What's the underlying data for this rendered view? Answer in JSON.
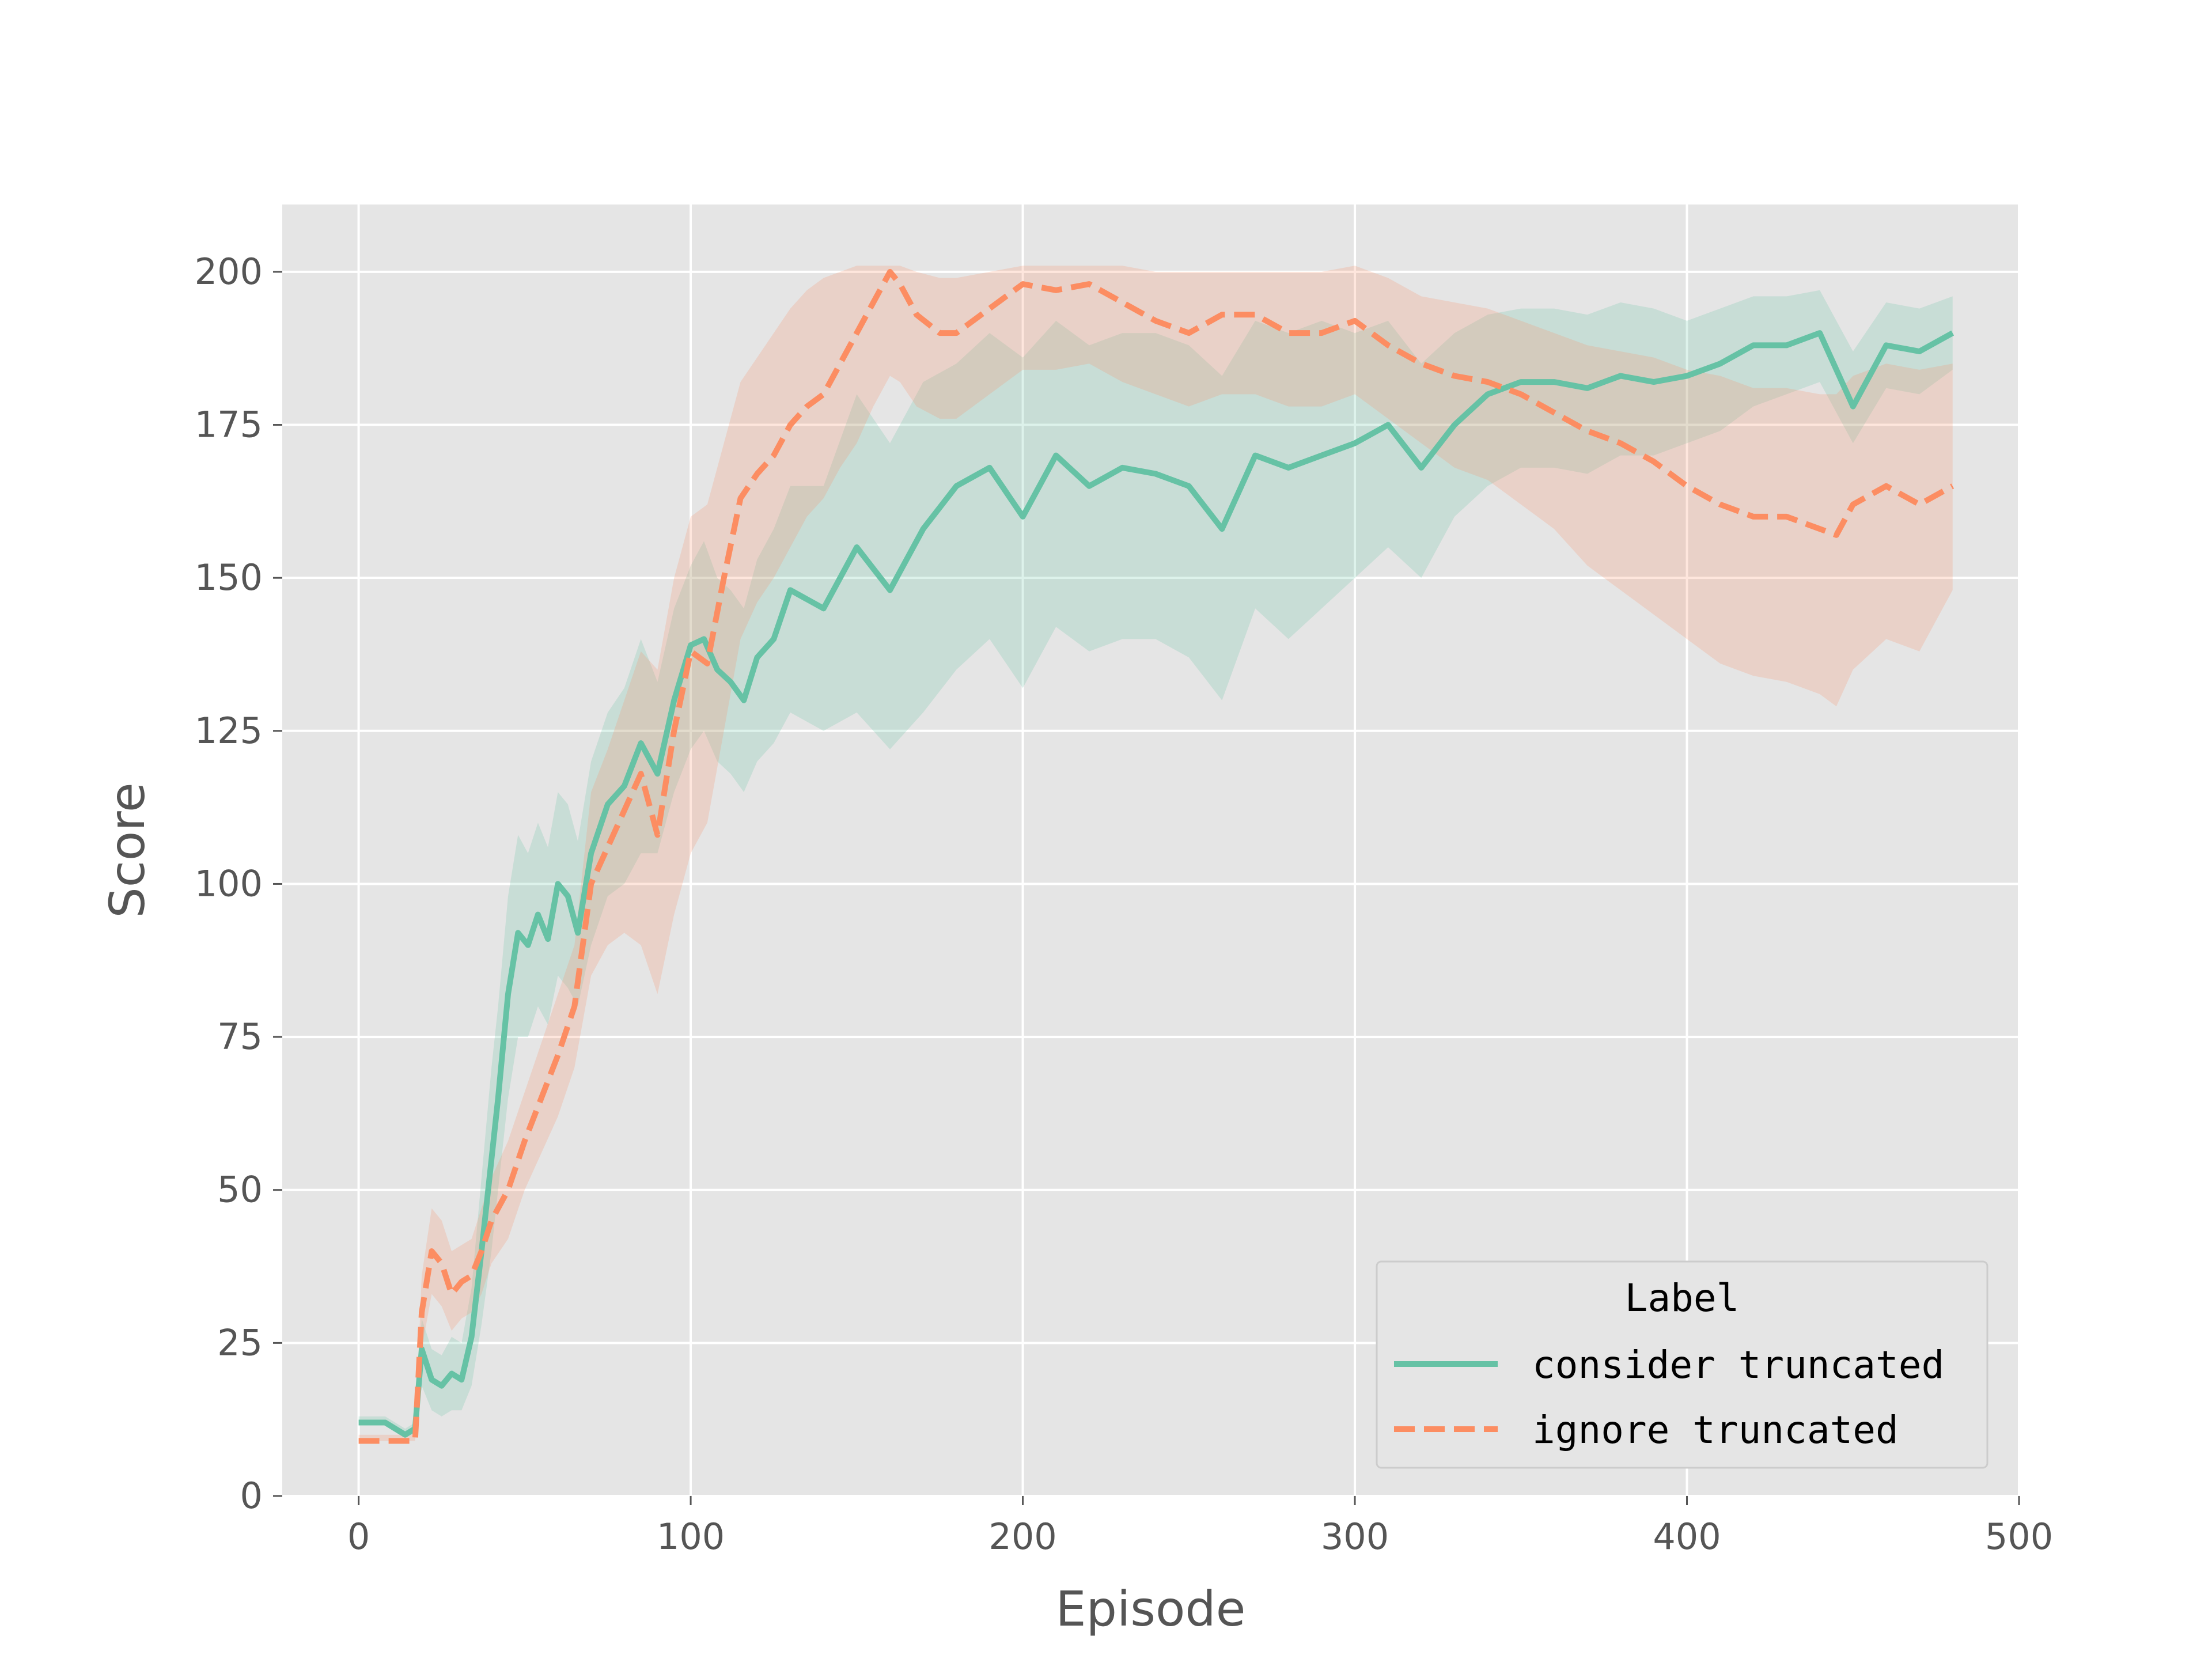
{
  "chart_data": {
    "type": "line",
    "title": "",
    "xlabel": "Episode",
    "ylabel": "Score",
    "xlim": [
      -23,
      500
    ],
    "ylim": [
      0,
      211
    ],
    "xticks": [
      0,
      100,
      200,
      300,
      400,
      500
    ],
    "yticks": [
      0,
      25,
      50,
      75,
      100,
      125,
      150,
      175,
      200
    ],
    "grid": true,
    "background": "#e5e5e5",
    "gridColor": "#ffffff",
    "legend": {
      "title": "Label",
      "placement": "lower-right",
      "entries": [
        {
          "label": "consider truncated",
          "color": "#66c2a5",
          "style": "solid"
        },
        {
          "label": "ignore truncated",
          "color": "#fc8d62",
          "style": "dashed"
        }
      ]
    },
    "series": [
      {
        "name": "consider truncated",
        "color": "#66c2a5",
        "style": "solid",
        "x": [
          0,
          8,
          14,
          17,
          19,
          22,
          25,
          28,
          31,
          34,
          37,
          40,
          42,
          45,
          48,
          51,
          54,
          57,
          60,
          63,
          66,
          70,
          75,
          80,
          85,
          90,
          95,
          100,
          104,
          108,
          112,
          116,
          120,
          125,
          130,
          140,
          150,
          160,
          170,
          180,
          190,
          200,
          210,
          220,
          230,
          240,
          250,
          260,
          270,
          280,
          290,
          300,
          310,
          320,
          330,
          340,
          350,
          360,
          370,
          380,
          390,
          400,
          410,
          420,
          430,
          440,
          450,
          460,
          470,
          480
        ],
        "y": [
          12,
          12,
          10,
          11,
          24,
          19,
          18,
          20,
          19,
          26,
          40,
          55,
          65,
          82,
          92,
          90,
          95,
          91,
          100,
          98,
          92,
          105,
          113,
          116,
          123,
          118,
          130,
          139,
          140,
          135,
          133,
          130,
          137,
          140,
          148,
          145,
          155,
          148,
          158,
          165,
          168,
          160,
          170,
          165,
          168,
          167,
          165,
          158,
          170,
          168,
          170,
          172,
          175,
          168,
          175,
          180,
          182,
          182,
          181,
          183,
          182,
          183,
          185,
          188,
          188,
          190,
          178,
          188,
          187,
          190
        ],
        "lower": [
          12,
          12,
          10,
          10,
          18,
          14,
          13,
          14,
          14,
          18,
          28,
          40,
          50,
          65,
          75,
          75,
          80,
          77,
          85,
          83,
          80,
          90,
          98,
          100,
          105,
          105,
          115,
          122,
          125,
          120,
          118,
          115,
          120,
          123,
          128,
          125,
          128,
          122,
          128,
          135,
          140,
          132,
          142,
          138,
          140,
          140,
          137,
          130,
          145,
          140,
          145,
          150,
          155,
          150,
          160,
          165,
          168,
          168,
          167,
          170,
          170,
          172,
          174,
          178,
          180,
          182,
          172,
          181,
          180,
          184
        ],
        "upper": [
          13,
          13,
          11,
          12,
          29,
          24,
          23,
          26,
          25,
          34,
          52,
          70,
          80,
          98,
          108,
          105,
          110,
          106,
          115,
          113,
          107,
          120,
          128,
          132,
          140,
          133,
          145,
          152,
          156,
          150,
          148,
          145,
          153,
          158,
          165,
          165,
          180,
          172,
          182,
          185,
          190,
          186,
          192,
          188,
          190,
          190,
          188,
          183,
          192,
          190,
          192,
          190,
          192,
          185,
          190,
          193,
          194,
          194,
          193,
          195,
          194,
          192,
          194,
          196,
          196,
          197,
          187,
          195,
          194,
          196
        ]
      },
      {
        "name": "ignore truncated",
        "color": "#fc8d62",
        "style": "dashed",
        "x": [
          0,
          8,
          14,
          17,
          19,
          22,
          25,
          28,
          31,
          34,
          37,
          40,
          45,
          50,
          55,
          60,
          65,
          70,
          75,
          80,
          85,
          90,
          95,
          100,
          105,
          110,
          115,
          120,
          125,
          130,
          135,
          140,
          145,
          150,
          155,
          160,
          163,
          168,
          175,
          180,
          190,
          200,
          210,
          220,
          230,
          240,
          250,
          260,
          270,
          280,
          290,
          300,
          310,
          320,
          330,
          340,
          350,
          360,
          370,
          380,
          390,
          400,
          410,
          420,
          430,
          440,
          445,
          450,
          460,
          470,
          480
        ],
        "y": [
          9,
          9,
          9,
          9,
          30,
          40,
          38,
          33,
          35,
          36,
          40,
          45,
          50,
          58,
          65,
          72,
          80,
          100,
          106,
          112,
          118,
          108,
          125,
          138,
          136,
          150,
          163,
          167,
          170,
          175,
          178,
          180,
          185,
          190,
          195,
          200,
          198,
          193,
          190,
          190,
          194,
          198,
          197,
          198,
          195,
          192,
          190,
          193,
          193,
          190,
          190,
          192,
          188,
          185,
          183,
          182,
          180,
          177,
          174,
          172,
          169,
          165,
          162,
          160,
          160,
          158,
          157,
          162,
          165,
          162,
          165
        ],
        "lower": [
          9,
          9,
          9,
          9,
          24,
          33,
          31,
          27,
          29,
          30,
          33,
          38,
          42,
          50,
          56,
          62,
          70,
          85,
          90,
          92,
          90,
          82,
          95,
          105,
          110,
          125,
          140,
          146,
          150,
          155,
          160,
          163,
          168,
          172,
          178,
          183,
          182,
          178,
          176,
          176,
          180,
          184,
          184,
          185,
          182,
          180,
          178,
          180,
          180,
          178,
          178,
          180,
          176,
          172,
          168,
          166,
          162,
          158,
          152,
          148,
          144,
          140,
          136,
          134,
          133,
          131,
          129,
          135,
          140,
          138,
          148
        ],
        "upper": [
          10,
          10,
          10,
          10,
          36,
          47,
          45,
          40,
          41,
          42,
          47,
          52,
          58,
          66,
          74,
          82,
          90,
          115,
          122,
          130,
          138,
          135,
          150,
          160,
          162,
          172,
          182,
          186,
          190,
          194,
          197,
          199,
          200,
          201,
          201,
          201,
          201,
          200,
          199,
          199,
          200,
          201,
          201,
          201,
          201,
          200,
          200,
          200,
          200,
          200,
          200,
          201,
          199,
          196,
          195,
          194,
          192,
          190,
          188,
          187,
          186,
          184,
          183,
          181,
          181,
          180,
          180,
          183,
          185,
          184,
          185
        ]
      }
    ]
  }
}
